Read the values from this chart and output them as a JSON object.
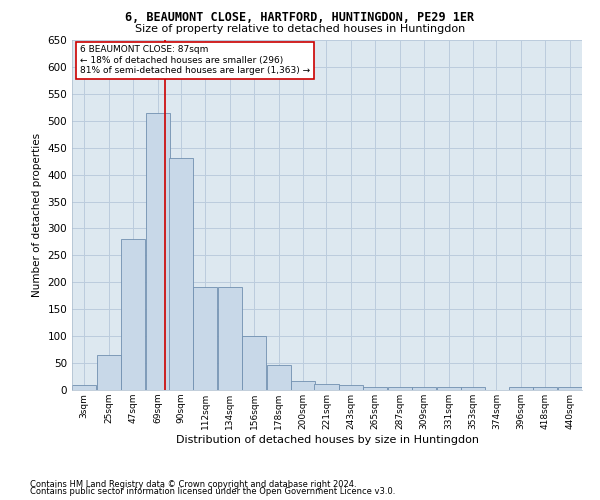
{
  "title1": "6, BEAUMONT CLOSE, HARTFORD, HUNTINGDON, PE29 1ER",
  "title2": "Size of property relative to detached houses in Huntingdon",
  "xlabel": "Distribution of detached houses by size in Huntingdon",
  "ylabel": "Number of detached properties",
  "footer1": "Contains HM Land Registry data © Crown copyright and database right 2024.",
  "footer2": "Contains public sector information licensed under the Open Government Licence v3.0.",
  "annotation_title": "6 BEAUMONT CLOSE: 87sqm",
  "annotation_line1": "← 18% of detached houses are smaller (296)",
  "annotation_line2": "81% of semi-detached houses are larger (1,363) →",
  "property_size": 87,
  "bar_categories": [
    "3sqm",
    "25sqm",
    "47sqm",
    "69sqm",
    "90sqm",
    "112sqm",
    "134sqm",
    "156sqm",
    "178sqm",
    "200sqm",
    "221sqm",
    "243sqm",
    "265sqm",
    "287sqm",
    "309sqm",
    "331sqm",
    "353sqm",
    "374sqm",
    "396sqm",
    "418sqm",
    "440sqm"
  ],
  "bar_edges": [
    3,
    25,
    47,
    69,
    90,
    112,
    134,
    156,
    178,
    200,
    221,
    243,
    265,
    287,
    309,
    331,
    353,
    374,
    396,
    418,
    440
  ],
  "bar_heights": [
    10,
    65,
    280,
    515,
    430,
    192,
    192,
    101,
    46,
    16,
    11,
    10,
    5,
    6,
    6,
    5,
    5,
    0,
    5,
    5,
    5
  ],
  "bar_color": "#c8d8e8",
  "bar_edge_color": "#7aа0c0",
  "vline_x": 87,
  "vline_color": "#cc0000",
  "annotation_box_color": "#cc0000",
  "annotation_text_color": "#000000",
  "plot_bg_color": "#dde8f0",
  "background_color": "#ffffff",
  "grid_color": "#bbccdd",
  "ylim": [
    0,
    650
  ],
  "yticks": [
    0,
    50,
    100,
    150,
    200,
    250,
    300,
    350,
    400,
    450,
    500,
    550,
    600,
    650
  ]
}
